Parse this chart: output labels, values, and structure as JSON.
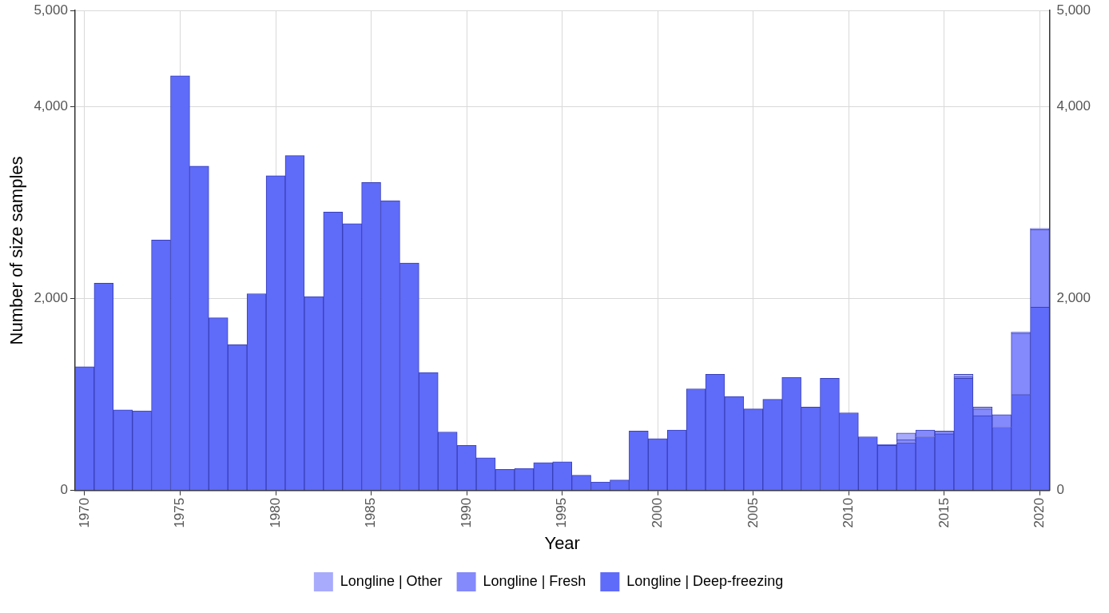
{
  "chart_data": {
    "type": "bar",
    "stacked": true,
    "xlabel": "Year",
    "ylabel": "Number of size samples",
    "categories": [
      "1970",
      null,
      null,
      null,
      null,
      "1975",
      null,
      null,
      null,
      null,
      "1980",
      null,
      null,
      null,
      null,
      "1985",
      null,
      null,
      null,
      null,
      "1990",
      null,
      null,
      null,
      null,
      "1995",
      null,
      null,
      null,
      null,
      "2000",
      null,
      null,
      null,
      null,
      "2005",
      null,
      null,
      null,
      null,
      "2010",
      null,
      null,
      null,
      null,
      "2015",
      null,
      null,
      null,
      null,
      "2020"
    ],
    "series": [
      {
        "name": "Longline | Deep-freezing",
        "color": "#5f6bf9",
        "values": [
          1290,
          2160,
          840,
          830,
          2610,
          4320,
          3380,
          1800,
          1520,
          2050,
          3280,
          3490,
          2020,
          2900,
          2780,
          3210,
          3020,
          2370,
          1230,
          610,
          470,
          340,
          220,
          230,
          290,
          300,
          160,
          90,
          110,
          620,
          540,
          630,
          1060,
          1210,
          980,
          850,
          950,
          1180,
          870,
          1170,
          810,
          560,
          470,
          500,
          560,
          590,
          1170,
          780,
          660,
          1000,
          1910
        ]
      },
      {
        "name": "Longline | Fresh",
        "color": "#8489fb",
        "values": [
          null,
          null,
          null,
          null,
          null,
          null,
          null,
          null,
          null,
          null,
          null,
          null,
          null,
          null,
          null,
          null,
          null,
          null,
          null,
          null,
          null,
          null,
          null,
          null,
          null,
          null,
          null,
          null,
          null,
          null,
          null,
          null,
          null,
          null,
          null,
          null,
          null,
          null,
          null,
          null,
          null,
          null,
          10,
          30,
          70,
          30,
          20,
          70,
          130,
          640,
          810
        ]
      },
      {
        "name": "Longline | Other",
        "color": "#a8abfb",
        "values": [
          null,
          null,
          null,
          null,
          null,
          null,
          null,
          null,
          null,
          null,
          null,
          null,
          null,
          null,
          null,
          null,
          null,
          null,
          null,
          null,
          null,
          null,
          null,
          null,
          null,
          null,
          null,
          null,
          null,
          null,
          null,
          null,
          null,
          null,
          null,
          null,
          null,
          null,
          null,
          null,
          null,
          null,
          null,
          70,
          null,
          null,
          20,
          20,
          null,
          10,
          10
        ]
      }
    ],
    "ylim": [
      0,
      5000
    ],
    "yticks": [
      0,
      {
        "value": 2000,
        "label": "2,000"
      },
      {
        "value": 4000,
        "label": "4,000"
      },
      {
        "value": 5000,
        "label": "5,000"
      }
    ],
    "y2lim": [
      0,
      5000
    ],
    "y2ticks": [
      0,
      {
        "value": 2000,
        "label": "2,000"
      },
      {
        "value": 4000,
        "label": "4,000"
      },
      {
        "value": 5000,
        "label": "5,000"
      }
    ],
    "grid": true,
    "legend": "bottom"
  }
}
